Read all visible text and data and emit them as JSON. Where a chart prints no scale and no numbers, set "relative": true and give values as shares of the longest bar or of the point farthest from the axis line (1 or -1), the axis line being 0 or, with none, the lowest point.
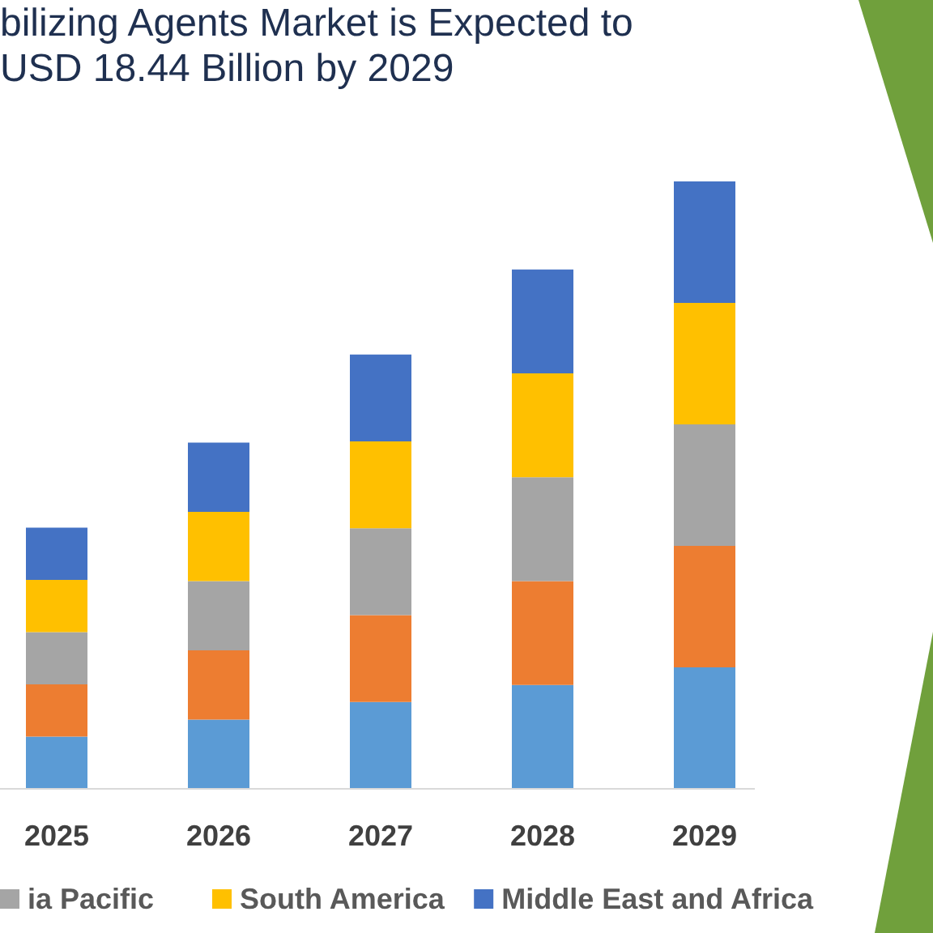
{
  "chart_data": {
    "type": "bar",
    "title": "bilizing Agents Market is Expected to\nUSD 18.44 Billion by 2029",
    "categories": [
      "2025",
      "2026",
      "2027",
      "2028",
      "2029"
    ],
    "stacked": true,
    "relative": true,
    "legend": "bottom",
    "series": [
      {
        "color": "#5b9bd5",
        "values": [
          0.086,
          0.114,
          0.143,
          0.171,
          0.2
        ]
      },
      {
        "color": "#ed7d31",
        "values": [
          0.086,
          0.114,
          0.143,
          0.171,
          0.2
        ]
      },
      {
        "name": "ia Pacific",
        "color": "#a5a5a5",
        "values": [
          0.086,
          0.114,
          0.143,
          0.171,
          0.2
        ]
      },
      {
        "name": "South America",
        "color": "#ffc000",
        "values": [
          0.086,
          0.114,
          0.143,
          0.171,
          0.2
        ]
      },
      {
        "name": "Middle East and Africa",
        "color": "#4472c4",
        "values": [
          0.086,
          0.114,
          0.143,
          0.171,
          0.2
        ]
      }
    ]
  }
}
